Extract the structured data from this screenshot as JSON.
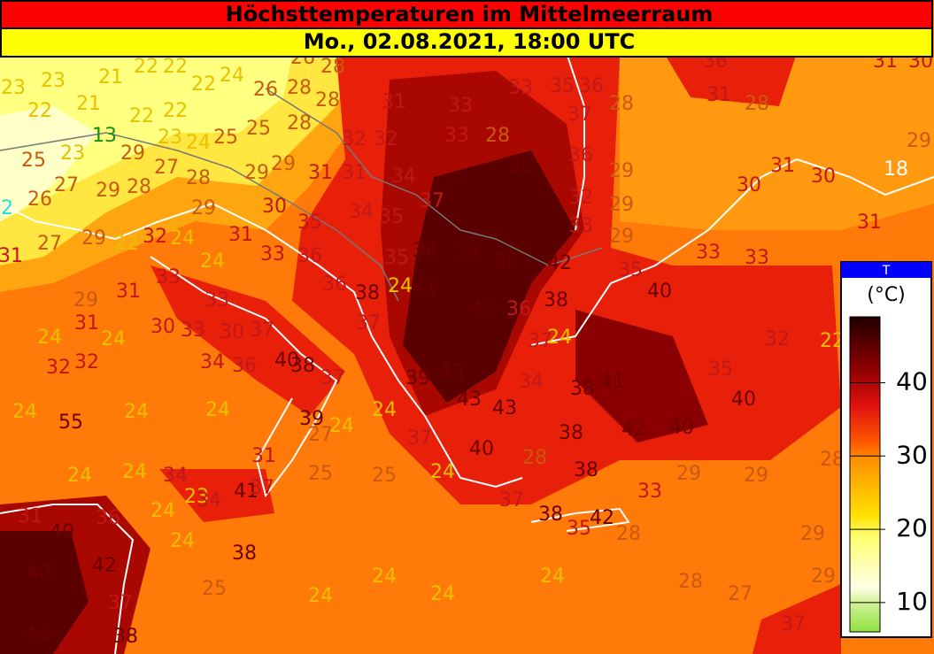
{
  "header": {
    "title": "Höchsttemperaturen im Mittelmeerraum",
    "subtitle": "Mo., 02.08.2021, 18:00 UTC"
  },
  "legend": {
    "title": "T",
    "unit": "(°C)",
    "range": [
      6,
      49
    ],
    "ticks": [
      10,
      20,
      30,
      40
    ]
  },
  "map_labels": [
    23,
    28,
    23,
    21,
    24,
    26,
    28,
    23,
    23,
    21,
    22,
    22,
    24,
    22,
    26,
    28,
    28,
    22,
    21,
    22,
    22,
    13,
    23,
    24,
    25,
    25,
    28,
    25,
    23,
    29,
    27,
    28,
    29,
    29,
    2,
    26,
    27,
    29,
    28,
    29,
    30,
    31,
    31,
    34,
    27,
    29,
    22,
    32,
    24,
    31,
    35,
    34,
    35,
    37,
    31,
    33,
    36,
    24,
    33,
    31,
    29,
    36,
    38,
    24,
    41,
    35,
    38,
    38,
    38,
    42,
    35,
    40,
    33,
    33,
    31,
    33,
    33,
    35,
    36,
    37,
    28,
    32,
    32,
    33,
    28,
    38,
    36,
    29,
    32,
    29,
    33,
    29,
    36,
    31,
    28,
    33,
    31,
    30,
    31,
    30,
    30,
    18,
    29,
    31,
    31,
    24,
    24,
    30,
    33,
    30,
    37,
    33,
    37,
    43,
    36,
    38,
    37,
    24,
    32,
    22,
    32,
    32,
    34,
    36,
    40,
    38,
    37,
    39,
    43,
    34,
    38,
    41,
    35,
    40,
    24,
    24,
    24,
    24,
    43,
    43,
    55,
    39,
    27,
    24,
    42,
    40,
    38,
    37,
    40,
    28,
    38,
    29,
    29,
    28,
    24,
    24,
    34,
    31,
    25,
    25,
    24,
    23,
    34,
    41,
    37,
    37,
    33,
    31,
    40,
    36,
    24,
    38,
    35,
    42,
    28,
    29,
    24,
    38,
    42,
    40,
    25,
    24,
    24,
    28,
    29,
    24,
    24,
    27,
    37,
    44,
    38,
    37
  ]
}
